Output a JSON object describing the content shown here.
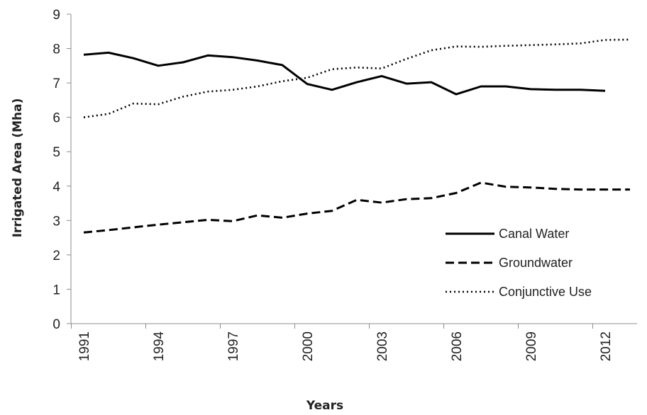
{
  "chart_data": {
    "type": "line",
    "title": "",
    "xlabel": "Years",
    "ylabel": "Irrigated Area (Mha)",
    "x": [
      1991,
      1992,
      1993,
      1994,
      1995,
      1996,
      1997,
      1998,
      1999,
      2000,
      2001,
      2002,
      2003,
      2004,
      2005,
      2006,
      2007,
      2008,
      2009,
      2010,
      2011,
      2012,
      2013
    ],
    "xticks": [
      "1991",
      "1994",
      "1997",
      "2000",
      "2003",
      "2006",
      "2009",
      "2012"
    ],
    "yticks": [
      "0",
      "1",
      "2",
      "3",
      "4",
      "5",
      "6",
      "7",
      "8",
      "9"
    ],
    "ylim": [
      0,
      9
    ],
    "xlim": [
      1991,
      2013
    ],
    "grid": false,
    "legend_position": "bottom-right",
    "series": [
      {
        "name": "Canal Water",
        "style": "solid",
        "color": "#000000",
        "values": [
          7.82,
          7.88,
          7.72,
          7.5,
          7.6,
          7.8,
          7.75,
          7.65,
          7.52,
          6.97,
          6.8,
          7.02,
          7.2,
          6.98,
          7.02,
          6.67,
          6.9,
          6.9,
          6.82,
          6.8,
          6.8,
          6.77,
          null
        ]
      },
      {
        "name": "Groundwater",
        "style": "dashed",
        "color": "#000000",
        "values": [
          2.65,
          2.72,
          2.8,
          2.88,
          2.95,
          3.02,
          2.98,
          3.15,
          3.08,
          3.2,
          3.28,
          3.6,
          3.52,
          3.62,
          3.65,
          3.8,
          4.1,
          3.98,
          3.96,
          3.92,
          3.9,
          3.9,
          3.9
        ]
      },
      {
        "name": "Conjunctive Use",
        "style": "dotted",
        "color": "#000000",
        "values": [
          6.0,
          6.1,
          6.4,
          6.38,
          6.6,
          6.75,
          6.8,
          6.9,
          7.05,
          7.15,
          7.4,
          7.45,
          7.42,
          7.7,
          7.95,
          8.06,
          8.05,
          8.08,
          8.1,
          8.12,
          8.15,
          8.25,
          8.26
        ]
      }
    ]
  }
}
